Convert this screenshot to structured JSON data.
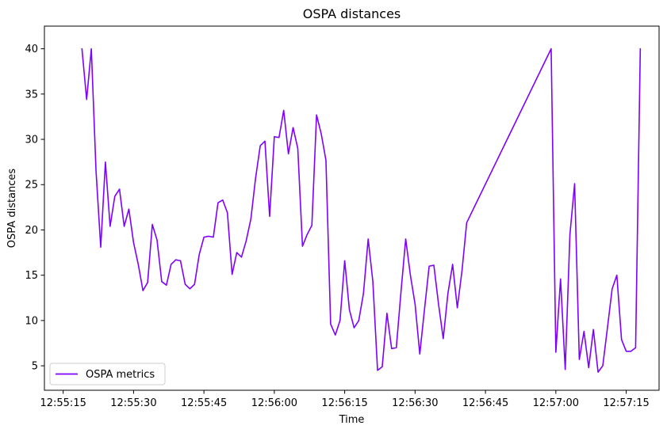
{
  "chart_data": {
    "type": "line",
    "title": "OSPA distances",
    "xlabel": "Time",
    "ylabel": "OSPA distances",
    "x_tick_labels": [
      "12:55:15",
      "12:55:30",
      "12:55:45",
      "12:56:00",
      "12:56:15",
      "12:56:30",
      "12:56:45",
      "12:57:00",
      "12:57:15"
    ],
    "y_ticks": [
      5,
      10,
      15,
      20,
      25,
      30,
      35,
      40
    ],
    "xlim": [
      "12:55:11",
      "12:57:22"
    ],
    "ylim": [
      2.3,
      42.5
    ],
    "grid": false,
    "legend_position": "lower-left",
    "series": [
      {
        "name": "OSPA metrics",
        "color": "#7f00ff",
        "x": [
          "12:55:19",
          "12:55:20",
          "12:55:21",
          "12:55:22",
          "12:55:23",
          "12:55:24",
          "12:55:25",
          "12:55:26",
          "12:55:27",
          "12:55:28",
          "12:55:29",
          "12:55:30",
          "12:55:31",
          "12:55:32",
          "12:55:33",
          "12:55:34",
          "12:55:35",
          "12:55:36",
          "12:55:37",
          "12:55:38",
          "12:55:39",
          "12:55:40",
          "12:55:41",
          "12:55:42",
          "12:55:43",
          "12:55:44",
          "12:55:45",
          "12:55:46",
          "12:55:47",
          "12:55:48",
          "12:55:49",
          "12:55:50",
          "12:55:51",
          "12:55:52",
          "12:55:53",
          "12:55:54",
          "12:55:55",
          "12:55:56",
          "12:55:57",
          "12:55:58",
          "12:55:59",
          "12:56:00",
          "12:56:01",
          "12:56:02",
          "12:56:03",
          "12:56:04",
          "12:56:05",
          "12:56:06",
          "12:56:07",
          "12:56:08",
          "12:56:09",
          "12:56:10",
          "12:56:11",
          "12:56:12",
          "12:56:13",
          "12:56:14",
          "12:56:15",
          "12:56:16",
          "12:56:17",
          "12:56:18",
          "12:56:19",
          "12:56:20",
          "12:56:21",
          "12:56:22",
          "12:56:23",
          "12:56:24",
          "12:56:25",
          "12:56:26",
          "12:56:27",
          "12:56:28",
          "12:56:29",
          "12:56:30",
          "12:56:31",
          "12:56:32",
          "12:56:33",
          "12:56:34",
          "12:56:35",
          "12:56:36",
          "12:56:37",
          "12:56:38",
          "12:56:39",
          "12:56:40",
          "12:56:41",
          "12:56:59",
          "12:57:00",
          "12:57:01",
          "12:57:02",
          "12:57:03",
          "12:57:04",
          "12:57:05",
          "12:57:06",
          "12:57:07",
          "12:57:08",
          "12:57:09",
          "12:57:10",
          "12:57:11",
          "12:57:12",
          "12:57:13",
          "12:57:14",
          "12:57:15",
          "12:57:16",
          "12:57:17",
          "12:57:18"
        ],
        "values": [
          40.0,
          34.4,
          40.0,
          26.5,
          18.1,
          27.5,
          20.4,
          23.7,
          24.5,
          20.4,
          22.3,
          18.6,
          16.2,
          13.3,
          14.2,
          20.6,
          18.9,
          14.3,
          13.9,
          16.2,
          16.7,
          16.6,
          14.0,
          13.5,
          14.0,
          17.3,
          19.2,
          19.3,
          19.2,
          23.0,
          23.3,
          21.9,
          15.1,
          17.5,
          17.0,
          18.8,
          21.2,
          25.7,
          29.3,
          29.8,
          21.5,
          30.3,
          30.2,
          33.2,
          28.4,
          31.3,
          29.0,
          18.2,
          19.5,
          20.5,
          32.7,
          30.6,
          27.7,
          9.6,
          8.4,
          10.0,
          16.6,
          11.2,
          9.2,
          10.0,
          13.0,
          19.0,
          14.3,
          4.5,
          4.9,
          10.8,
          6.9,
          7.0,
          13.2,
          19.0,
          15.0,
          11.8,
          6.3,
          11.2,
          16.0,
          16.1,
          11.8,
          8.0,
          13.0,
          16.2,
          11.4,
          15.5,
          20.8,
          40.0,
          6.5,
          14.6,
          4.6,
          19.5,
          25.1,
          5.7,
          8.8,
          4.8,
          9.0,
          4.3,
          5.0,
          9.2,
          13.5,
          15.0,
          7.9,
          6.6,
          6.6,
          7.0,
          40.0
        ]
      }
    ]
  }
}
